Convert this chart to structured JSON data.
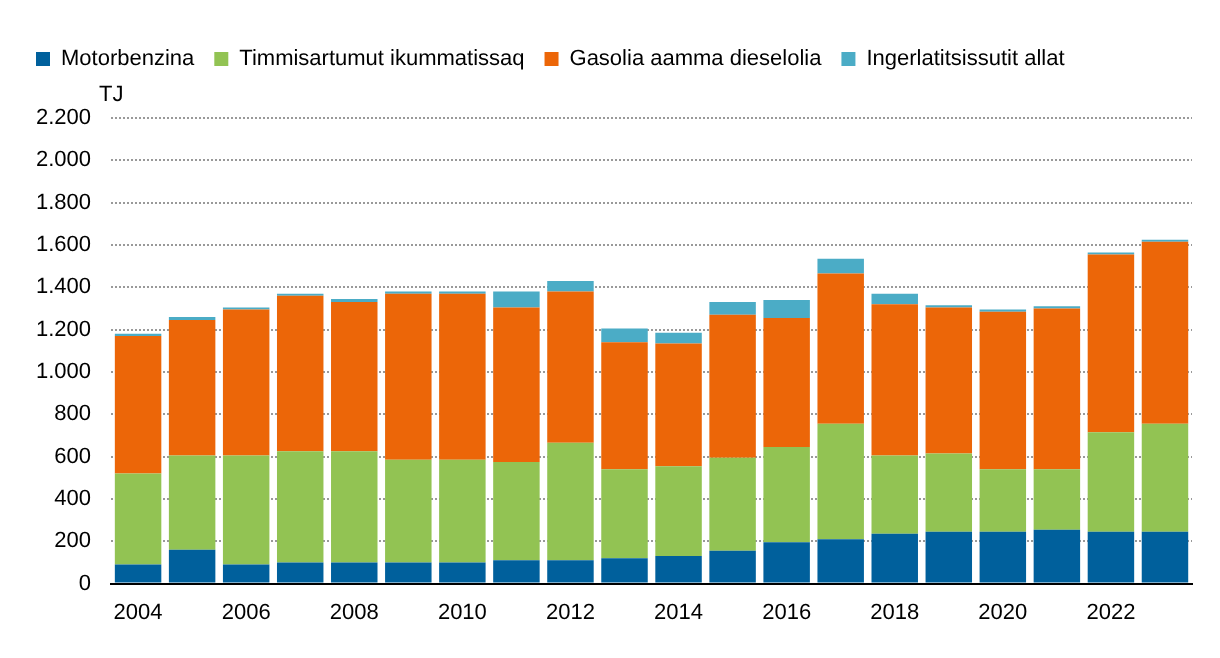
{
  "chart_data": {
    "type": "bar",
    "stacked": true,
    "ylabel": "TJ",
    "categories": [
      "2004",
      null,
      "2006",
      null,
      "2008",
      null,
      "2010",
      null,
      "2012",
      null,
      "2014",
      null,
      "2016",
      null,
      "2018",
      null,
      "2020",
      null,
      "2022",
      null
    ],
    "series": [
      {
        "name": "Motorbenzina",
        "color": "#00609c",
        "values": [
          90,
          160,
          90,
          100,
          100,
          100,
          100,
          110,
          110,
          120,
          130,
          155,
          195,
          210,
          235,
          245,
          245,
          255,
          245,
          245
        ]
      },
      {
        "name": "Timmisartumut ikummatissaq",
        "color": "#92c353",
        "values": [
          430,
          445,
          515,
          525,
          525,
          485,
          485,
          465,
          555,
          420,
          425,
          440,
          450,
          545,
          370,
          370,
          295,
          285,
          470,
          510
        ]
      },
      {
        "name": "Gasolia aamma dieselolia",
        "color": "#ec6608",
        "values": [
          650,
          640,
          690,
          735,
          705,
          785,
          785,
          730,
          715,
          600,
          580,
          675,
          610,
          710,
          715,
          690,
          745,
          760,
          840,
          860
        ]
      },
      {
        "name": "Ingerlatitsissutit allat",
        "color": "#4bacc6",
        "values": [
          10,
          15,
          10,
          10,
          15,
          10,
          10,
          75,
          50,
          65,
          50,
          60,
          85,
          70,
          50,
          10,
          10,
          10,
          10,
          10
        ]
      }
    ],
    "ylim": [
      0,
      2200
    ],
    "yticks": [
      0,
      200,
      400,
      600,
      800,
      {
        "value": 1000,
        "label": "1.000"
      },
      {
        "value": 1200,
        "label": "1.200"
      },
      {
        "value": 1400,
        "label": "1.400"
      },
      {
        "value": 1600,
        "label": "1.600"
      },
      {
        "value": 1800,
        "label": "1.800"
      },
      {
        "value": 2000,
        "label": "2.000"
      },
      {
        "value": 2200,
        "label": "2.200"
      }
    ],
    "grid": "y",
    "legend": "top"
  }
}
